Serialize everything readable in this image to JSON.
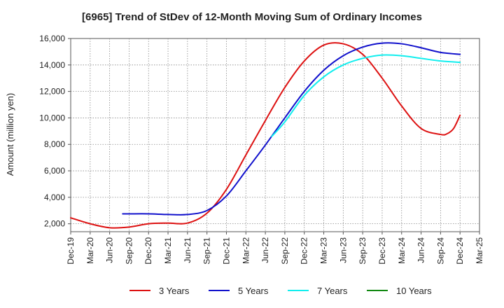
{
  "chart_data": {
    "type": "line",
    "title": "[6965]  Trend of StDev of 12-Month Moving Sum of Ordinary Incomes",
    "xlabel": "",
    "ylabel": "Amount (million yen)",
    "ylim": [
      1400,
      16000
    ],
    "yticks": [
      2000,
      4000,
      6000,
      8000,
      10000,
      12000,
      14000,
      16000
    ],
    "ytick_labels": [
      "2,000",
      "4,000",
      "6,000",
      "8,000",
      "10,000",
      "12,000",
      "14,000",
      "16,000"
    ],
    "x_categories": [
      "Dec-19",
      "Mar-20",
      "Jun-20",
      "Sep-20",
      "Dec-20",
      "Mar-21",
      "Jun-21",
      "Sep-21",
      "Dec-21",
      "Mar-22",
      "Jun-22",
      "Sep-22",
      "Dec-22",
      "Mar-23",
      "Jun-23",
      "Sep-23",
      "Dec-23",
      "Mar-24",
      "Jun-24",
      "Sep-24",
      "Dec-24",
      "Mar-25"
    ],
    "grid": true,
    "legend_position": "bottom",
    "series": [
      {
        "name": "3 Years",
        "color": "#dd1111",
        "points": [
          [
            0,
            2450
          ],
          [
            1,
            2000
          ],
          [
            2,
            1700
          ],
          [
            3,
            1750
          ],
          [
            4,
            2000
          ],
          [
            5,
            2050
          ],
          [
            6,
            2050
          ],
          [
            7,
            2800
          ],
          [
            8,
            4600
          ],
          [
            9,
            7200
          ],
          [
            10,
            9800
          ],
          [
            11,
            12300
          ],
          [
            12,
            14300
          ],
          [
            13,
            15500
          ],
          [
            14,
            15600
          ],
          [
            15,
            14800
          ],
          [
            16,
            13000
          ],
          [
            17,
            10900
          ],
          [
            18,
            9200
          ],
          [
            19,
            8750
          ],
          [
            19.33,
            8800
          ],
          [
            19.67,
            9200
          ],
          [
            20,
            10200
          ]
        ]
      },
      {
        "name": "5 Years",
        "color": "#1111cc",
        "points": [
          [
            2.67,
            2750
          ],
          [
            3,
            2750
          ],
          [
            4,
            2750
          ],
          [
            5,
            2700
          ],
          [
            6,
            2700
          ],
          [
            7,
            3000
          ],
          [
            8,
            4100
          ],
          [
            9,
            6000
          ],
          [
            10,
            7950
          ],
          [
            11,
            10000
          ],
          [
            12,
            12000
          ],
          [
            13,
            13600
          ],
          [
            14,
            14700
          ],
          [
            15,
            15350
          ],
          [
            16,
            15650
          ],
          [
            17,
            15600
          ],
          [
            18,
            15300
          ],
          [
            19,
            14950
          ],
          [
            20,
            14800
          ]
        ]
      },
      {
        "name": "7 Years",
        "color": "#11eeee",
        "points": [
          [
            10.33,
            8600
          ],
          [
            11,
            9700
          ],
          [
            12,
            11700
          ],
          [
            13,
            13100
          ],
          [
            14,
            14000
          ],
          [
            15,
            14500
          ],
          [
            16,
            14750
          ],
          [
            17,
            14700
          ],
          [
            18,
            14500
          ],
          [
            19,
            14300
          ],
          [
            20,
            14200
          ]
        ]
      },
      {
        "name": "10 Years",
        "color": "#118811",
        "points": []
      }
    ]
  }
}
